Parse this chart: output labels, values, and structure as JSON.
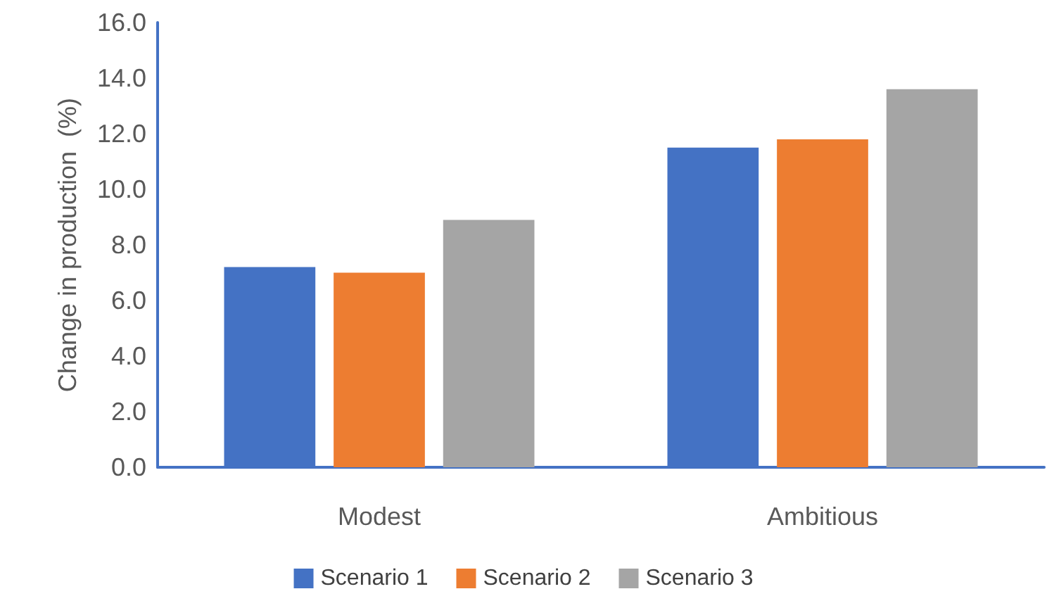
{
  "chart_data": {
    "type": "bar",
    "ylabel": "Change in production  (%)",
    "categories": [
      "Modest",
      "Ambitious"
    ],
    "series": [
      {
        "name": "Scenario 1",
        "color": "#4472c4",
        "values": [
          7.2,
          11.5
        ]
      },
      {
        "name": "Scenario 2",
        "color": "#ed7d31",
        "values": [
          7.0,
          11.8
        ]
      },
      {
        "name": "Scenario 3",
        "color": "#a5a5a5",
        "values": [
          8.9,
          13.6
        ]
      }
    ],
    "ylim": [
      0,
      16
    ],
    "yticks": [
      {
        "value": 0,
        "label": "0.0"
      },
      {
        "value": 2,
        "label": "2.0"
      },
      {
        "value": 4,
        "label": "4.0"
      },
      {
        "value": 6,
        "label": "6.0"
      },
      {
        "value": 8,
        "label": "8.0"
      },
      {
        "value": 10,
        "label": "10.0"
      },
      {
        "value": 12,
        "label": "12.0"
      },
      {
        "value": 14,
        "label": "14.0"
      },
      {
        "value": 16,
        "label": "16.0"
      }
    ],
    "grid": false,
    "legend": "bottom"
  }
}
